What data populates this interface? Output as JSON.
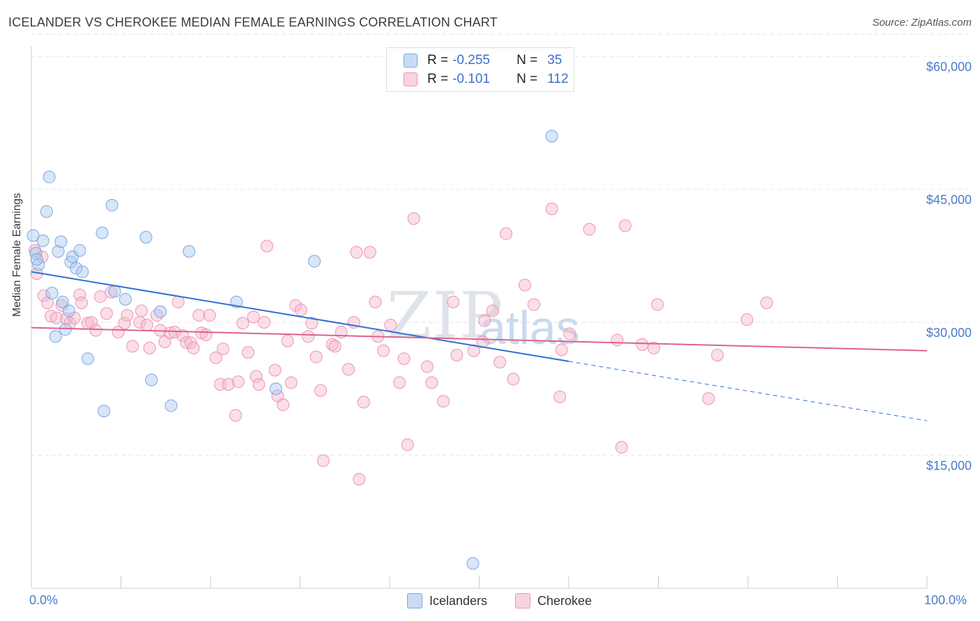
{
  "title": "ICELANDER VS CHEROKEE MEDIAN FEMALE EARNINGS CORRELATION CHART",
  "source": "Source: ZipAtlas.com",
  "watermark": {
    "part1": "ZIP",
    "part2": "atlas"
  },
  "legend": {
    "rows": [
      {
        "r_label": "R =",
        "r_value": "-0.255",
        "n_label": "N =",
        "n_value": "35",
        "color": "#a8c8f0"
      },
      {
        "r_label": "R =",
        "r_value": "-0.101",
        "n_label": "N =",
        "n_value": "112",
        "color": "#f5b8cc"
      }
    ]
  },
  "bottom_legend": [
    "Icelanders",
    "Cherokee"
  ],
  "chart_data": {
    "type": "scatter",
    "title": "ICELANDER VS CHEROKEE MEDIAN FEMALE EARNINGS CORRELATION CHART",
    "xlabel": "",
    "ylabel": "Median Female Earnings",
    "xlim": [
      0,
      100
    ],
    "ylim": [
      0,
      63000
    ],
    "x_tick_labels": [
      "0.0%",
      "100.0%"
    ],
    "y_ticks": [
      15000,
      30000,
      45000,
      60000
    ],
    "y_tick_labels": [
      "$15,000",
      "$30,000",
      "$45,000",
      "$60,000"
    ],
    "series": [
      {
        "name": "Icelanders",
        "color": "#a8c8f0",
        "stroke": "#7aa8e0",
        "trend": {
          "x0": 0,
          "y0": 35700,
          "x1": 60,
          "y1": 25600,
          "x_dash_end": 100,
          "y_dash_end": 18900,
          "color": "#2f6fd0"
        },
        "points": [
          [
            0.2,
            39800
          ],
          [
            0.5,
            37800
          ],
          [
            0.8,
            36500
          ],
          [
            1.3,
            39200
          ],
          [
            2.0,
            46400
          ],
          [
            1.7,
            42500
          ],
          [
            2.3,
            33300
          ],
          [
            2.7,
            28400
          ],
          [
            3.0,
            38000
          ],
          [
            3.3,
            39100
          ],
          [
            3.5,
            32300
          ],
          [
            3.8,
            29200
          ],
          [
            4.2,
            31300
          ],
          [
            4.4,
            36800
          ],
          [
            4.6,
            37400
          ],
          [
            5.0,
            36100
          ],
          [
            5.4,
            38100
          ],
          [
            5.7,
            35700
          ],
          [
            6.3,
            25900
          ],
          [
            7.9,
            40100
          ],
          [
            8.1,
            20000
          ],
          [
            9.0,
            43200
          ],
          [
            9.3,
            33500
          ],
          [
            10.5,
            32600
          ],
          [
            12.8,
            39600
          ],
          [
            13.4,
            23500
          ],
          [
            14.4,
            31200
          ],
          [
            15.6,
            20600
          ],
          [
            17.6,
            38000
          ],
          [
            22.9,
            32300
          ],
          [
            27.3,
            22500
          ],
          [
            31.6,
            36900
          ],
          [
            49.3,
            2800
          ],
          [
            58.1,
            51000
          ],
          [
            0.6,
            37100
          ]
        ]
      },
      {
        "name": "Cherokee",
        "color": "#f5b8cc",
        "stroke": "#ec93b1",
        "trend": {
          "x0": 0,
          "y0": 29400,
          "x1": 100,
          "y1": 26800,
          "color": "#e0608e"
        },
        "points": [
          [
            0.4,
            38100
          ],
          [
            0.6,
            35500
          ],
          [
            1.2,
            37400
          ],
          [
            1.4,
            33000
          ],
          [
            1.8,
            32200
          ],
          [
            2.2,
            30700
          ],
          [
            2.8,
            30500
          ],
          [
            3.4,
            31900
          ],
          [
            3.9,
            30400
          ],
          [
            4.3,
            29900
          ],
          [
            4.8,
            30500
          ],
          [
            5.4,
            33100
          ],
          [
            5.6,
            32200
          ],
          [
            6.3,
            29900
          ],
          [
            6.7,
            30000
          ],
          [
            7.2,
            29100
          ],
          [
            7.7,
            32900
          ],
          [
            8.4,
            31000
          ],
          [
            8.9,
            33400
          ],
          [
            9.7,
            28900
          ],
          [
            10.4,
            29900
          ],
          [
            10.7,
            30800
          ],
          [
            11.3,
            27300
          ],
          [
            12.1,
            30000
          ],
          [
            12.3,
            31300
          ],
          [
            12.9,
            29700
          ],
          [
            13.2,
            27100
          ],
          [
            14.0,
            30800
          ],
          [
            14.4,
            29100
          ],
          [
            14.9,
            27800
          ],
          [
            15.5,
            28800
          ],
          [
            16.0,
            28900
          ],
          [
            16.4,
            32300
          ],
          [
            16.9,
            28500
          ],
          [
            17.3,
            27700
          ],
          [
            17.8,
            27700
          ],
          [
            18.1,
            27100
          ],
          [
            18.7,
            30800
          ],
          [
            19.0,
            28800
          ],
          [
            19.5,
            28600
          ],
          [
            19.9,
            30800
          ],
          [
            20.6,
            26000
          ],
          [
            21.1,
            23000
          ],
          [
            21.4,
            27000
          ],
          [
            22.0,
            23000
          ],
          [
            22.8,
            19500
          ],
          [
            23.1,
            23300
          ],
          [
            23.6,
            29900
          ],
          [
            24.2,
            26600
          ],
          [
            24.8,
            30600
          ],
          [
            25.1,
            23900
          ],
          [
            25.4,
            23000
          ],
          [
            26.0,
            30000
          ],
          [
            26.3,
            38600
          ],
          [
            27.2,
            24600
          ],
          [
            27.5,
            21700
          ],
          [
            28.1,
            20700
          ],
          [
            28.6,
            27900
          ],
          [
            29.0,
            23200
          ],
          [
            29.5,
            31900
          ],
          [
            30.1,
            31400
          ],
          [
            30.9,
            28400
          ],
          [
            31.3,
            29900
          ],
          [
            31.8,
            26100
          ],
          [
            32.3,
            22300
          ],
          [
            32.6,
            14400
          ],
          [
            33.6,
            27500
          ],
          [
            33.9,
            27300
          ],
          [
            34.6,
            28900
          ],
          [
            35.4,
            24700
          ],
          [
            36.0,
            30000
          ],
          [
            36.3,
            37900
          ],
          [
            36.6,
            12300
          ],
          [
            37.1,
            21000
          ],
          [
            37.8,
            37900
          ],
          [
            38.4,
            32300
          ],
          [
            38.7,
            28400
          ],
          [
            39.3,
            26800
          ],
          [
            40.1,
            29700
          ],
          [
            41.1,
            23200
          ],
          [
            41.6,
            25900
          ],
          [
            42.0,
            16200
          ],
          [
            42.7,
            41700
          ],
          [
            44.2,
            25000
          ],
          [
            44.7,
            23200
          ],
          [
            46.0,
            21100
          ],
          [
            47.1,
            32300
          ],
          [
            47.5,
            26300
          ],
          [
            49.4,
            26800
          ],
          [
            50.4,
            27800
          ],
          [
            50.6,
            30200
          ],
          [
            51.5,
            31300
          ],
          [
            52.3,
            25500
          ],
          [
            53.0,
            40000
          ],
          [
            53.8,
            23600
          ],
          [
            55.1,
            34200
          ],
          [
            56.1,
            32000
          ],
          [
            58.1,
            42800
          ],
          [
            59.0,
            21600
          ],
          [
            59.2,
            26900
          ],
          [
            60.1,
            28700
          ],
          [
            62.3,
            40500
          ],
          [
            65.4,
            28000
          ],
          [
            65.9,
            15900
          ],
          [
            66.3,
            40900
          ],
          [
            68.2,
            27500
          ],
          [
            69.5,
            27100
          ],
          [
            69.9,
            32000
          ],
          [
            75.6,
            21400
          ],
          [
            76.6,
            26300
          ],
          [
            79.9,
            30300
          ],
          [
            82.1,
            32200
          ]
        ]
      }
    ]
  }
}
